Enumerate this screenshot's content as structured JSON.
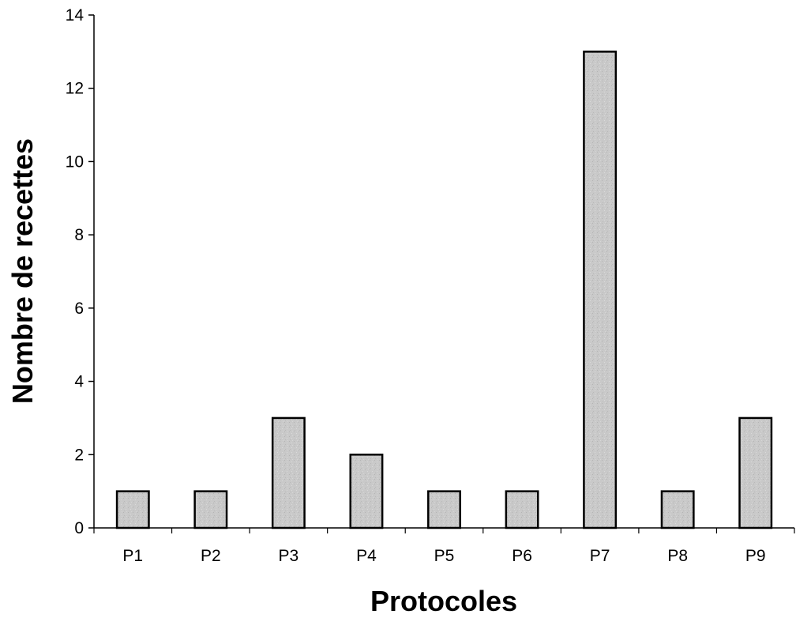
{
  "chart_data": {
    "type": "bar",
    "title": "",
    "xlabel": "Protocoles",
    "ylabel": "Nombre de recettes",
    "categories": [
      "P1",
      "P2",
      "P3",
      "P4",
      "P5",
      "P6",
      "P7",
      "P8",
      "P9"
    ],
    "values": [
      1,
      1,
      3,
      2,
      1,
      1,
      13,
      1,
      3
    ],
    "ylim": [
      0,
      14
    ],
    "yticks": [
      0,
      2,
      4,
      6,
      8,
      10,
      12,
      14
    ],
    "grid": false,
    "legend": "none",
    "bar_color": "#c9c9c9",
    "bar_edge_color": "#000000"
  }
}
